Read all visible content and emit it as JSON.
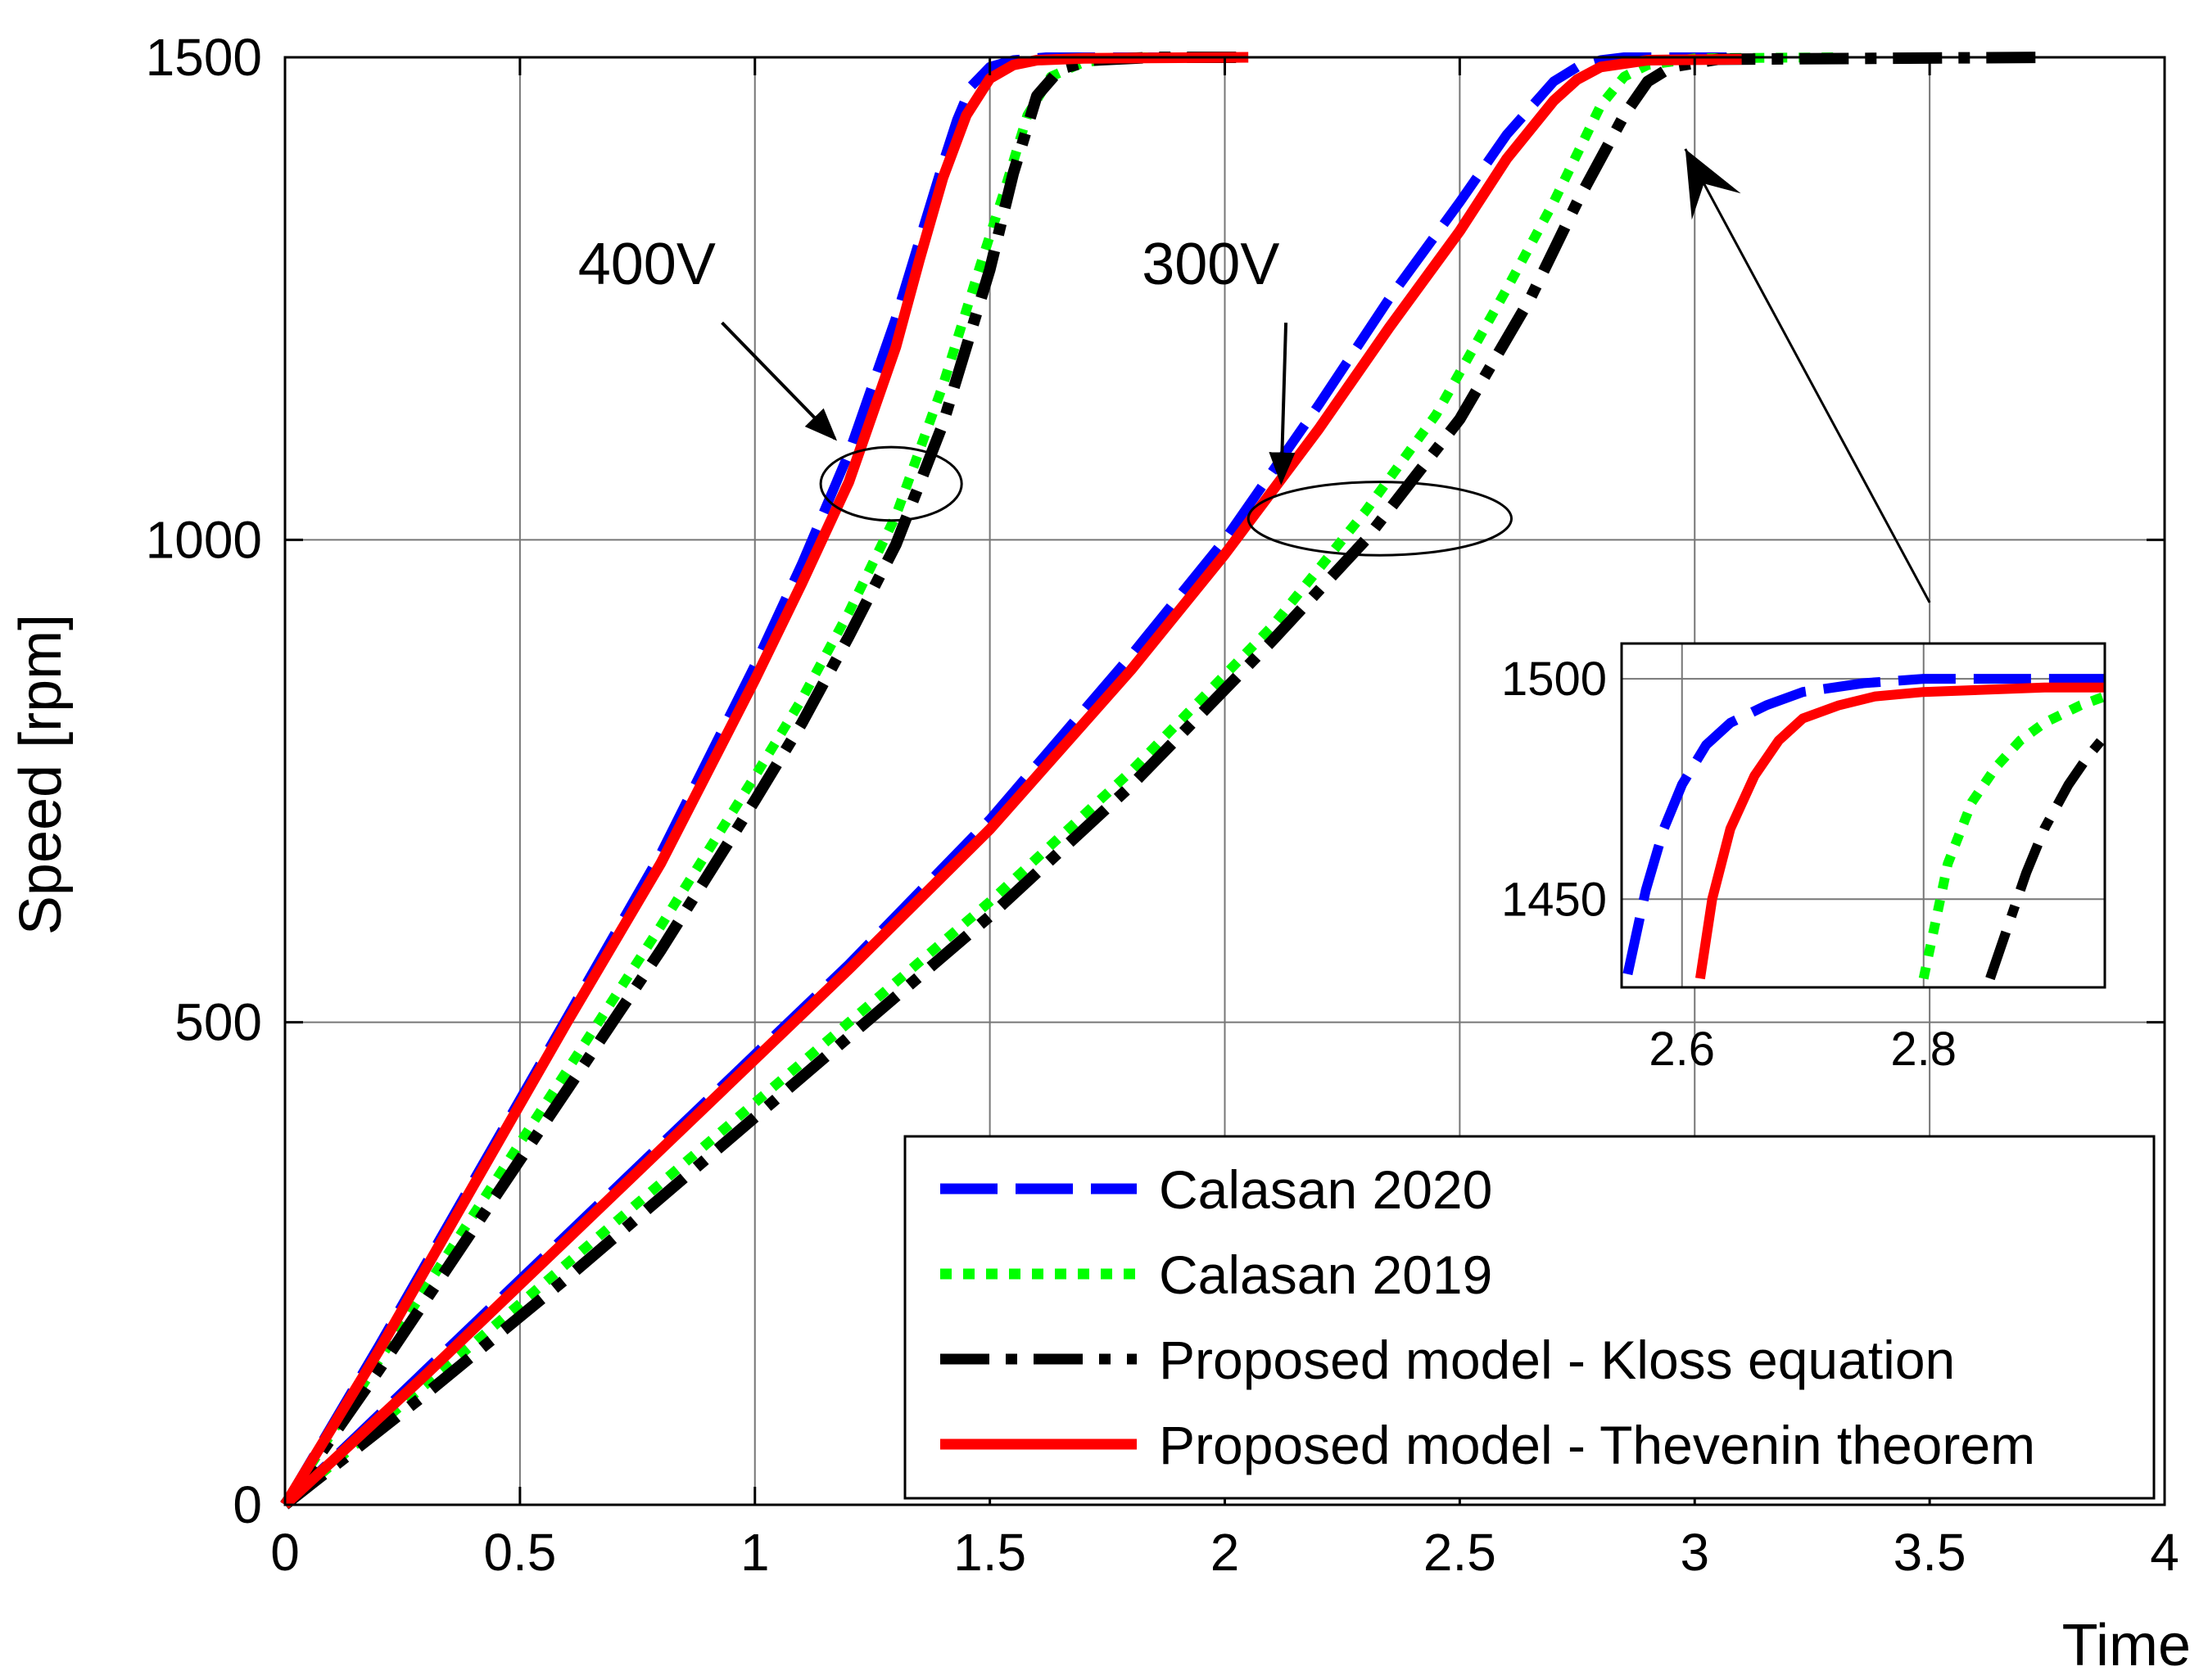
{
  "chart_data": {
    "type": "line",
    "xlabel": "Time",
    "ylabel": "Speed [rpm]",
    "xlim": [
      0,
      4
    ],
    "ylim": [
      0,
      1500
    ],
    "xticks": [
      0,
      0.5,
      1,
      1.5,
      2,
      2.5,
      3,
      3.5,
      4
    ],
    "xtick_labels": [
      "0",
      "0.5",
      "1",
      "1.5",
      "2",
      "2.5",
      "3",
      "3.5",
      "4"
    ],
    "yticks": [
      0,
      500,
      1000,
      1500
    ],
    "ytick_labels": [
      "0",
      "500",
      "1000",
      "1500"
    ],
    "grid": true,
    "legend_position": "bottom-right",
    "annotations": [
      {
        "text": "400V",
        "x": 0.77,
        "y": 1265,
        "arrow_from": [
          0.93,
          1225
        ],
        "arrow_to": [
          1.17,
          1105
        ],
        "ellipse_center": [
          1.29,
          1058
        ],
        "ellipse_radius": [
          0.15,
          38
        ]
      },
      {
        "text": "300V",
        "x": 1.97,
        "y": 1265,
        "arrow_from": [
          2.13,
          1225
        ],
        "arrow_to": [
          2.12,
          1060
        ],
        "ellipse_center": [
          2.33,
          1022
        ],
        "ellipse_radius": [
          0.28,
          38
        ]
      },
      {
        "text": "",
        "arrow_from": [
          3.5,
          935
        ],
        "arrow_to": [
          2.98,
          1405
        ]
      }
    ],
    "series": [
      {
        "name": "Calasan 2020",
        "color": "#0000ff",
        "style": "dashed",
        "groups": [
          {
            "voltage": "400V",
            "x": [
              0,
              0.2,
              0.4,
              0.6,
              0.8,
              1.0,
              1.1,
              1.2,
              1.3,
              1.35,
              1.4,
              1.43,
              1.46,
              1.5,
              1.55,
              1.62,
              1.75,
              2.05
            ],
            "y": [
              0,
              165,
              335,
              505,
              675,
              870,
              975,
              1090,
              1230,
              1310,
              1390,
              1435,
              1470,
              1490,
              1497,
              1500,
              1500,
              1500
            ]
          },
          {
            "voltage": "300V",
            "x": [
              0,
              0.3,
              0.6,
              0.9,
              1.2,
              1.5,
              1.8,
              2.0,
              2.2,
              2.35,
              2.5,
              2.6,
              2.7,
              2.75,
              2.8,
              2.85,
              2.95,
              3.1
            ],
            "y": [
              0,
              140,
              280,
              420,
              560,
              710,
              880,
              1000,
              1140,
              1250,
              1350,
              1420,
              1475,
              1490,
              1497,
              1500,
              1500,
              1500
            ]
          }
        ]
      },
      {
        "name": "Calasan 2019",
        "color": "#00ff00",
        "style": "dotted",
        "groups": [
          {
            "voltage": "400V",
            "x": [
              0,
              0.2,
              0.4,
              0.6,
              0.8,
              1.0,
              1.1,
              1.2,
              1.3,
              1.4,
              1.48,
              1.53,
              1.58,
              1.63,
              1.7,
              1.8,
              2.05
            ],
            "y": [
              0,
              150,
              300,
              450,
              600,
              755,
              835,
              925,
              1025,
              1160,
              1285,
              1360,
              1440,
              1480,
              1495,
              1500,
              1500
            ]
          },
          {
            "voltage": "300V",
            "x": [
              0,
              0.3,
              0.6,
              0.9,
              1.2,
              1.5,
              1.8,
              2.1,
              2.3,
              2.45,
              2.6,
              2.7,
              2.8,
              2.85,
              2.9,
              3.0,
              3.3
            ],
            "y": [
              0,
              125,
              250,
              375,
              500,
              625,
              760,
              910,
              1030,
              1130,
              1260,
              1350,
              1450,
              1480,
              1492,
              1499,
              1500
            ]
          }
        ]
      },
      {
        "name": "Proposed model - Kloss equation",
        "color": "#000000",
        "style": "dashdot",
        "groups": [
          {
            "voltage": "400V",
            "x": [
              0,
              0.2,
              0.4,
              0.6,
              0.8,
              1.0,
              1.1,
              1.2,
              1.3,
              1.4,
              1.5,
              1.55,
              1.6,
              1.65,
              1.72,
              1.85,
              2.05
            ],
            "y": [
              0,
              140,
              285,
              430,
              575,
              730,
              810,
              900,
              995,
              1120,
              1280,
              1380,
              1460,
              1488,
              1497,
              1500,
              1500
            ]
          },
          {
            "voltage": "300V",
            "x": [
              0,
              0.3,
              0.6,
              0.9,
              1.2,
              1.5,
              1.8,
              2.1,
              2.3,
              2.5,
              2.65,
              2.75,
              2.85,
              2.9,
              2.95,
              3.05,
              3.75
            ],
            "y": [
              0,
              115,
              235,
              360,
              485,
              610,
              745,
              895,
              1000,
              1125,
              1250,
              1350,
              1440,
              1475,
              1490,
              1498,
              1500
            ]
          }
        ]
      },
      {
        "name": "Proposed model - Thevenin theorem",
        "color": "#ff0000",
        "style": "solid",
        "groups": [
          {
            "voltage": "400V",
            "x": [
              0,
              0.2,
              0.4,
              0.6,
              0.8,
              1.0,
              1.1,
              1.2,
              1.3,
              1.35,
              1.4,
              1.45,
              1.5,
              1.55,
              1.6,
              1.7,
              2.05
            ],
            "y": [
              0,
              160,
              330,
              500,
              665,
              855,
              955,
              1060,
              1200,
              1290,
              1375,
              1440,
              1478,
              1492,
              1497,
              1499,
              1500
            ]
          },
          {
            "voltage": "300V",
            "x": [
              0,
              0.3,
              0.6,
              0.9,
              1.2,
              1.5,
              1.8,
              2.0,
              2.2,
              2.35,
              2.5,
              2.6,
              2.7,
              2.75,
              2.8,
              2.9,
              3.1
            ],
            "y": [
              0,
              135,
              275,
              415,
              555,
              700,
              865,
              985,
              1115,
              1220,
              1320,
              1395,
              1455,
              1477,
              1490,
              1497,
              1498
            ]
          }
        ]
      }
    ],
    "inset": {
      "xlim": [
        2.55,
        2.95
      ],
      "ylim": [
        1430,
        1508
      ],
      "xticks": [
        2.6,
        2.8
      ],
      "xtick_labels": [
        "2.6",
        "2.8"
      ],
      "yticks": [
        1450,
        1500
      ],
      "ytick_labels": [
        "1450",
        "1500"
      ],
      "grid": true,
      "series": [
        {
          "name": "Calasan 2020",
          "x": [
            2.555,
            2.57,
            2.585,
            2.6,
            2.62,
            2.64,
            2.67,
            2.7,
            2.75,
            2.8,
            2.9,
            2.95
          ],
          "y": [
            1433,
            1452,
            1466,
            1476,
            1485,
            1490,
            1494,
            1497,
            1499,
            1500,
            1500,
            1500
          ]
        },
        {
          "name": "Calasan 2019",
          "x": [
            2.8,
            2.81,
            2.82,
            2.84,
            2.86,
            2.88,
            2.9,
            2.93,
            2.95
          ],
          "y": [
            1432,
            1445,
            1458,
            1472,
            1480,
            1486,
            1490,
            1494,
            1496
          ]
        },
        {
          "name": "Proposed model - Kloss equation",
          "x": [
            2.855,
            2.87,
            2.885,
            2.9,
            2.92,
            2.935,
            2.95
          ],
          "y": [
            1432,
            1444,
            1456,
            1466,
            1476,
            1482,
            1487
          ]
        },
        {
          "name": "Proposed model - Thevenin theorem",
          "x": [
            2.615,
            2.625,
            2.64,
            2.66,
            2.68,
            2.7,
            2.73,
            2.76,
            2.8,
            2.85,
            2.9,
            2.95
          ],
          "y": [
            1432,
            1450,
            1466,
            1478,
            1486,
            1491,
            1494,
            1496,
            1497,
            1497.5,
            1498,
            1498
          ]
        }
      ]
    }
  }
}
